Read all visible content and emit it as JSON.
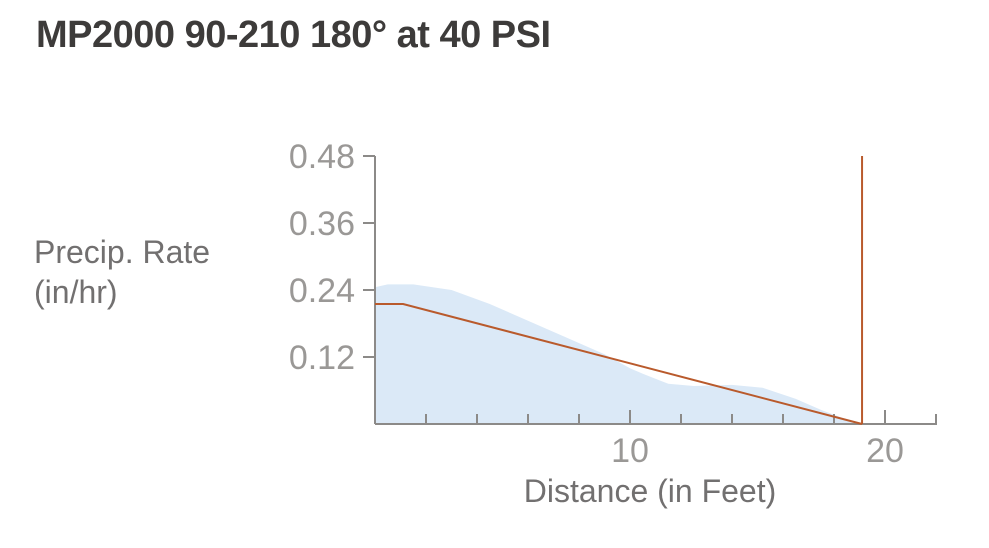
{
  "title": "MP2000 90-210 180° at 40 PSI",
  "chart_data": {
    "type": "area",
    "ylabel_lines": [
      "Precip. Rate",
      "(in/hr)"
    ],
    "xlabel": "Distance (in Feet)",
    "xlim": [
      0,
      22
    ],
    "ylim": [
      0,
      0.48
    ],
    "yticks": [
      0.12,
      0.24,
      0.36,
      0.48
    ],
    "ytick_labels": [
      "0.12",
      "0.24",
      "0.36",
      "0.48"
    ],
    "xticks": [
      10,
      20
    ],
    "xtick_labels": [
      "10",
      "20"
    ],
    "x_minor_tick_step": 2,
    "area_series": {
      "color": "#dbe9f7",
      "x": [
        0,
        0.5,
        1.5,
        3,
        4.5,
        6,
        7.5,
        9,
        10,
        10.5,
        11.5,
        12.5,
        14,
        15.2,
        16.5,
        17.5,
        18.5,
        19.1
      ],
      "y": [
        0.245,
        0.25,
        0.25,
        0.24,
        0.215,
        0.185,
        0.155,
        0.125,
        0.1,
        0.09,
        0.072,
        0.068,
        0.07,
        0.065,
        0.045,
        0.025,
        0.008,
        0
      ]
    },
    "line_series": {
      "color": "#b95a2c",
      "x": [
        0,
        1.1,
        19.1
      ],
      "y": [
        0.215,
        0.215,
        0
      ]
    },
    "throw_radius_line": {
      "color": "#b95a2c",
      "x": 19.1,
      "y_top": 0.48
    }
  }
}
